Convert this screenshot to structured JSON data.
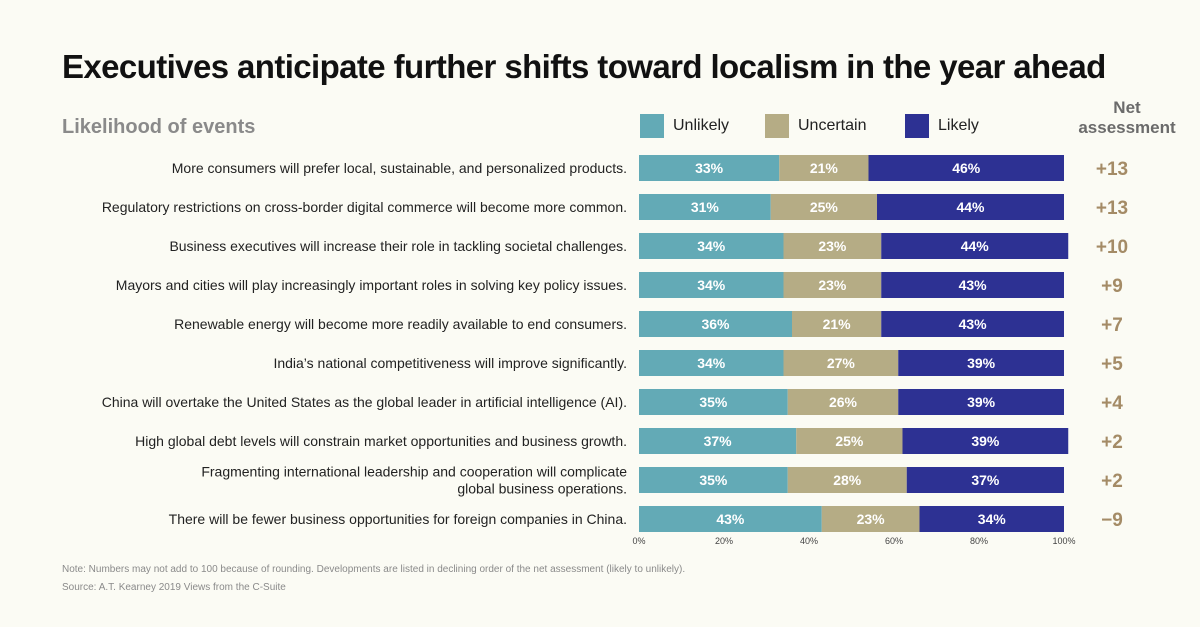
{
  "title": "Executives anticipate further shifts toward localism in the year ahead",
  "subtitle": "Likelihood of events",
  "net_header": "Net assessment",
  "note": "Note: Numbers may not add to 100 because of rounding. Developments are listed in declining order of the net assessment (likely to unlikely).",
  "source": "Source: A.T. Kearney 2019 Views from the C-Suite",
  "colors": {
    "unlikely": "#63aab6",
    "uncertain": "#b5ac85",
    "likely": "#2d3193",
    "net": "#a48b66"
  },
  "chart_data": {
    "type": "bar",
    "orientation": "horizontal",
    "stacked": true,
    "title": "Executives anticipate further shifts toward localism in the year ahead",
    "xlim": [
      0,
      100
    ],
    "x_ticks": [
      "0%",
      "20%",
      "40%",
      "60%",
      "80%",
      "100%"
    ],
    "series_names": [
      "Unlikely",
      "Uncertain",
      "Likely"
    ],
    "categories": [
      [
        "More consumers will prefer local, sustainable, and personalized products."
      ],
      [
        "Regulatory restrictions on cross-border digital commerce will become more common."
      ],
      [
        "Business executives will increase their role in tackling societal challenges."
      ],
      [
        "Mayors and cities will play increasingly important roles in solving key policy issues."
      ],
      [
        "Renewable energy will become more readily available to end consumers."
      ],
      [
        "India’s national competitiveness will improve significantly."
      ],
      [
        "China will overtake the United States as the global leader in artificial intelligence (AI)."
      ],
      [
        "High global debt levels will constrain market opportunities and business growth."
      ],
      [
        "Fragmenting international leadership and cooperation will complicate",
        "global business operations."
      ],
      [
        "There will be fewer business opportunities for foreign companies in China."
      ]
    ],
    "series": [
      {
        "name": "Unlikely",
        "values": [
          33,
          31,
          34,
          34,
          36,
          34,
          35,
          37,
          35,
          43
        ]
      },
      {
        "name": "Uncertain",
        "values": [
          21,
          25,
          23,
          23,
          21,
          27,
          26,
          25,
          28,
          23
        ]
      },
      {
        "name": "Likely",
        "values": [
          46,
          44,
          44,
          43,
          43,
          39,
          39,
          39,
          37,
          34
        ]
      }
    ],
    "net_assessment": [
      "+13",
      "+13",
      "+10",
      "+9",
      "+7",
      "+5",
      "+4",
      "+2",
      "+2",
      "−9"
    ]
  }
}
